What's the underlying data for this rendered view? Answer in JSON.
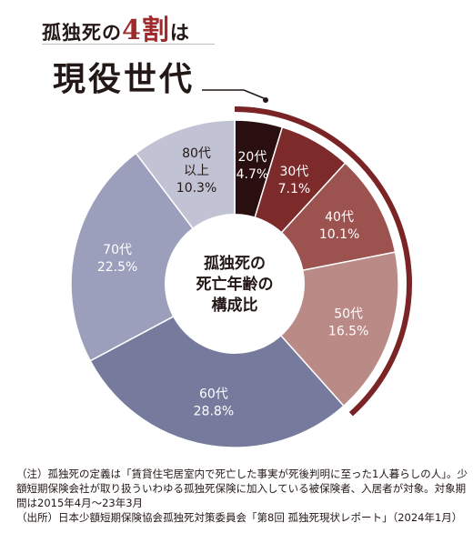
{
  "headline": {
    "prefix": "孤独死の",
    "accent": "4割",
    "suffix": "は",
    "main": "現役世代"
  },
  "chart_data": {
    "type": "pie",
    "style": "donut",
    "center_label": [
      "孤独死の",
      "死亡年齢の",
      "構成比"
    ],
    "categories": [
      "20代",
      "30代",
      "40代",
      "50代",
      "60代",
      "70代",
      "80代以上"
    ],
    "label_lines": [
      [
        "20代"
      ],
      [
        "30代"
      ],
      [
        "40代"
      ],
      [
        "50代"
      ],
      [
        "60代"
      ],
      [
        "70代"
      ],
      [
        "80代",
        "以上"
      ]
    ],
    "values": [
      4.7,
      7.1,
      10.1,
      16.5,
      28.8,
      22.5,
      10.3
    ],
    "value_labels": [
      "4.7%",
      "7.1%",
      "10.1%",
      "16.5%",
      "28.8%",
      "22.5%",
      "10.3%"
    ],
    "colors": [
      "#2a0f10",
      "#7d2a2b",
      "#9c5350",
      "#b98a86",
      "#767b9e",
      "#9b9fbb",
      "#c1c3d4"
    ],
    "label_colors": [
      "#ffffff",
      "#ffffff",
      "#ffffff",
      "#ffffff",
      "#ffffff",
      "#ffffff",
      "#231815"
    ],
    "highlight": {
      "categories": [
        "20代",
        "30代",
        "40代",
        "50代"
      ],
      "color": "#7a2426"
    }
  },
  "notes": {
    "note": "（注）孤独死の定義は「賃貸住宅居室内で死亡した事実が死後判明に至った1人暮らしの人」。少額短期保険会社が取り扱ういわゆる孤独死保険に加入している被保険者、入居者が対象。対象期間は2015年4月～23年3月",
    "source": "（出所）日本少額短期保険協会孤独死対策委員会「第8回 孤独死現状レポート」（2024年1月）"
  }
}
